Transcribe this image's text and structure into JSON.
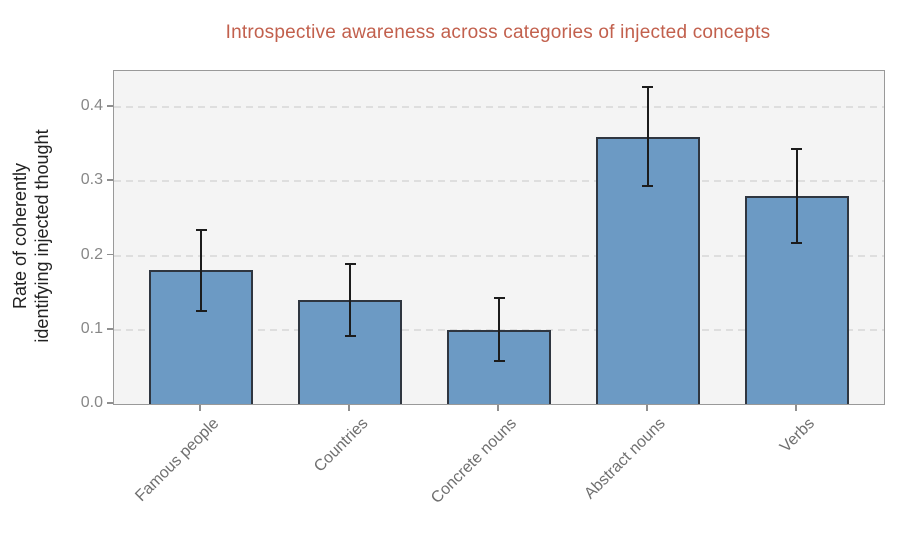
{
  "title": "Introspective awareness across categories of injected concepts",
  "colors": {
    "title": "#c2604d",
    "bar_fill": "#6c9ac4",
    "bar_edge": "#2f3640",
    "error": "#1c1c1c",
    "plot_background": "#f4f4f4",
    "grid": "#dedede",
    "spine": "#999999",
    "y_tick_label": "#878787",
    "x_tick_label": "#6f6f6f"
  },
  "chart_data": {
    "type": "bar",
    "title": "Introspective awareness across categories of injected concepts",
    "xlabel": "",
    "ylabel": "Rate of coherently\nidentifying injected thought",
    "categories": [
      "Famous people",
      "Countries",
      "Concrete nouns",
      "Abstract nouns",
      "Verbs"
    ],
    "values": [
      0.18,
      0.14,
      0.1,
      0.36,
      0.28
    ],
    "error_low": [
      0.125,
      0.091,
      0.058,
      0.293,
      0.217
    ],
    "error_high": [
      0.235,
      0.189,
      0.143,
      0.427,
      0.343
    ],
    "yticks": [
      0.0,
      0.1,
      0.2,
      0.3,
      0.4
    ],
    "ytick_labels": [
      "0.0",
      "0.1",
      "0.2",
      "0.3",
      "0.4"
    ],
    "ylim": [
      0,
      0.4485
    ],
    "xlim": [
      -0.585,
      4.585
    ],
    "bar_width_data_units": 0.7,
    "grid": "horizontal-dashed",
    "legend": "none",
    "x_label_rotation_deg": 45
  }
}
